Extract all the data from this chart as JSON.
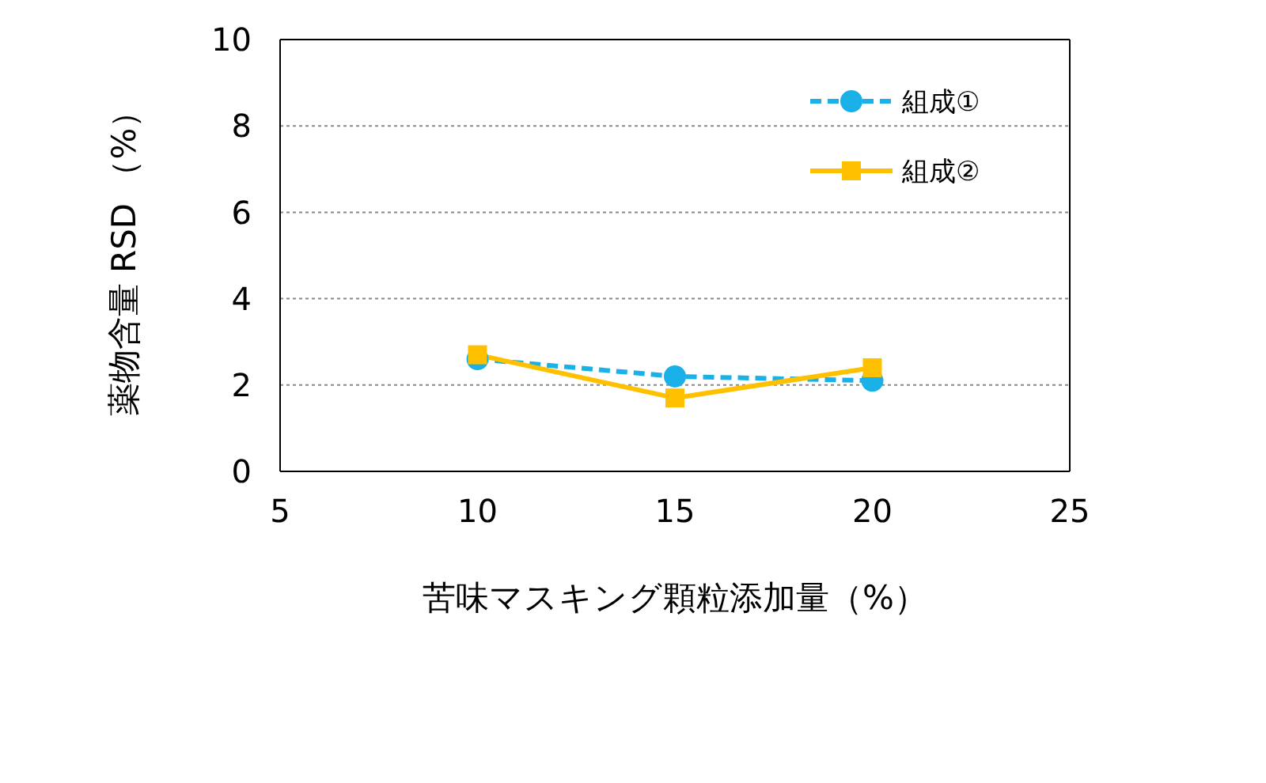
{
  "chart_data": {
    "type": "line",
    "xlabel": "苦味マスキング顆粒添加量（%）",
    "ylabel": "薬物含量 RSD （%）",
    "x": [
      10,
      15,
      20
    ],
    "series": [
      {
        "name": "組成①",
        "color": "#1ab0e8",
        "values": [
          2.6,
          2.2,
          2.1
        ],
        "marker": "circle",
        "line_style": "dashed"
      },
      {
        "name": "組成②",
        "color": "#ffc000",
        "values": [
          2.7,
          1.7,
          2.4
        ],
        "marker": "square",
        "line_style": "solid"
      }
    ],
    "xlim": [
      5,
      25
    ],
    "xticks": [
      5,
      10,
      15,
      20,
      25
    ],
    "ylim": [
      0,
      10
    ],
    "yticks": [
      0,
      2,
      4,
      6,
      8,
      10
    ],
    "grid": "y",
    "legend": "top right"
  }
}
